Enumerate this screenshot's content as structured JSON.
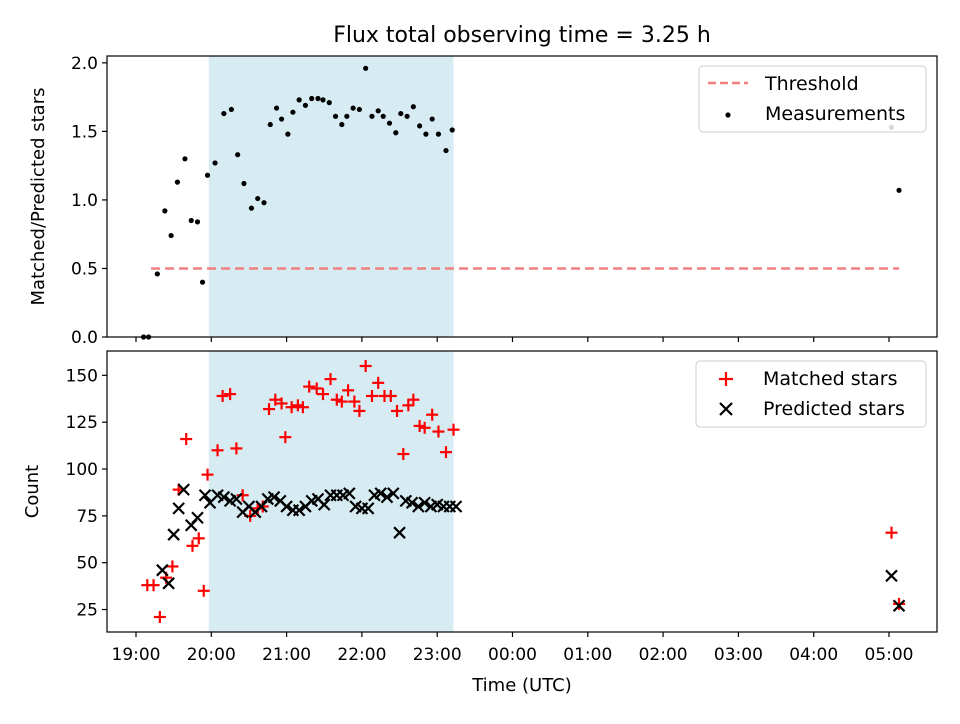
{
  "chart_data": [
    {
      "type": "scatter",
      "title": "Flux total observing time = 3.25 h",
      "xlabel": "",
      "ylabel": "Matched/Predicted stars",
      "ylim": [
        0.0,
        2.05
      ],
      "yticks": [
        "0.0",
        "0.5",
        "1.0",
        "1.5",
        "2.0"
      ],
      "shaded_interval": {
        "start": "19:58",
        "end": "23:13",
        "color": "#add8e6"
      },
      "legend": {
        "placement": "top-right",
        "entries": [
          "Threshold",
          "Measurements"
        ]
      },
      "threshold": {
        "name": "Threshold",
        "value": 0.5,
        "x_start": "19:12",
        "x_end": "05:08",
        "color": "#f08080",
        "style": "dashed"
      },
      "series": [
        {
          "name": "Measurements",
          "color": "#000000",
          "points": [
            {
              "x": "19:06",
              "y": 0.0
            },
            {
              "x": "19:10",
              "y": 0.0
            },
            {
              "x": "19:17",
              "y": 0.46
            },
            {
              "x": "19:23",
              "y": 0.92
            },
            {
              "x": "19:28",
              "y": 0.74
            },
            {
              "x": "19:33",
              "y": 1.13
            },
            {
              "x": "19:39",
              "y": 1.3
            },
            {
              "x": "19:44",
              "y": 0.85
            },
            {
              "x": "19:49",
              "y": 0.84
            },
            {
              "x": "19:53",
              "y": 0.4
            },
            {
              "x": "19:57",
              "y": 1.18
            },
            {
              "x": "20:03",
              "y": 1.27
            },
            {
              "x": "20:10",
              "y": 1.63
            },
            {
              "x": "20:16",
              "y": 1.66
            },
            {
              "x": "20:21",
              "y": 1.33
            },
            {
              "x": "20:26",
              "y": 1.12
            },
            {
              "x": "20:32",
              "y": 0.94
            },
            {
              "x": "20:37",
              "y": 1.01
            },
            {
              "x": "20:42",
              "y": 0.98
            },
            {
              "x": "20:47",
              "y": 1.55
            },
            {
              "x": "20:52",
              "y": 1.67
            },
            {
              "x": "20:56",
              "y": 1.59
            },
            {
              "x": "21:01",
              "y": 1.48
            },
            {
              "x": "21:05",
              "y": 1.64
            },
            {
              "x": "21:10",
              "y": 1.73
            },
            {
              "x": "21:15",
              "y": 1.69
            },
            {
              "x": "21:20",
              "y": 1.74
            },
            {
              "x": "21:25",
              "y": 1.74
            },
            {
              "x": "21:29",
              "y": 1.73
            },
            {
              "x": "21:34",
              "y": 1.71
            },
            {
              "x": "21:39",
              "y": 1.61
            },
            {
              "x": "21:44",
              "y": 1.55
            },
            {
              "x": "21:48",
              "y": 1.61
            },
            {
              "x": "21:53",
              "y": 1.67
            },
            {
              "x": "21:58",
              "y": 1.66
            },
            {
              "x": "22:03",
              "y": 1.96
            },
            {
              "x": "22:08",
              "y": 1.61
            },
            {
              "x": "22:13",
              "y": 1.65
            },
            {
              "x": "22:17",
              "y": 1.61
            },
            {
              "x": "22:22",
              "y": 1.56
            },
            {
              "x": "22:27",
              "y": 1.49
            },
            {
              "x": "22:31",
              "y": 1.63
            },
            {
              "x": "22:36",
              "y": 1.61
            },
            {
              "x": "22:41",
              "y": 1.68
            },
            {
              "x": "22:46",
              "y": 1.54
            },
            {
              "x": "22:51",
              "y": 1.48
            },
            {
              "x": "22:56",
              "y": 1.59
            },
            {
              "x": "23:01",
              "y": 1.48
            },
            {
              "x": "23:07",
              "y": 1.36
            },
            {
              "x": "23:12",
              "y": 1.51
            },
            {
              "x": "05:02",
              "y": 1.53
            },
            {
              "x": "05:08",
              "y": 1.07
            }
          ]
        }
      ]
    },
    {
      "type": "scatter",
      "title": "",
      "xlabel": "Time (UTC)",
      "ylabel": "Count",
      "ylim": [
        13,
        163
      ],
      "yticks": [
        "25",
        "50",
        "75",
        "100",
        "125",
        "150"
      ],
      "xticks": [
        "19:00",
        "20:00",
        "21:00",
        "22:00",
        "23:00",
        "00:00",
        "01:00",
        "02:00",
        "03:00",
        "04:00",
        "05:00"
      ],
      "shaded_interval": {
        "start": "19:58",
        "end": "23:13",
        "color": "#add8e6"
      },
      "legend": {
        "placement": "top-right",
        "entries": [
          "Matched stars",
          "Predicted stars"
        ]
      },
      "series": [
        {
          "name": "Matched stars",
          "marker": "+",
          "color": "#ff0000",
          "points": [
            {
              "x": "19:09",
              "y": 38
            },
            {
              "x": "19:14",
              "y": 38
            },
            {
              "x": "19:19",
              "y": 21
            },
            {
              "x": "19:24",
              "y": 42
            },
            {
              "x": "19:29",
              "y": 48
            },
            {
              "x": "19:34",
              "y": 89
            },
            {
              "x": "19:40",
              "y": 116
            },
            {
              "x": "19:45",
              "y": 59
            },
            {
              "x": "19:50",
              "y": 63
            },
            {
              "x": "19:54",
              "y": 35
            },
            {
              "x": "19:57",
              "y": 97
            },
            {
              "x": "20:05",
              "y": 110
            },
            {
              "x": "20:09",
              "y": 139
            },
            {
              "x": "20:15",
              "y": 140
            },
            {
              "x": "20:20",
              "y": 111
            },
            {
              "x": "20:25",
              "y": 86
            },
            {
              "x": "20:31",
              "y": 75
            },
            {
              "x": "20:37",
              "y": 79
            },
            {
              "x": "20:41",
              "y": 80
            },
            {
              "x": "20:46",
              "y": 132
            },
            {
              "x": "20:51",
              "y": 137
            },
            {
              "x": "20:56",
              "y": 135
            },
            {
              "x": "20:59",
              "y": 117
            },
            {
              "x": "21:04",
              "y": 133
            },
            {
              "x": "21:09",
              "y": 134
            },
            {
              "x": "21:13",
              "y": 133
            },
            {
              "x": "21:18",
              "y": 144
            },
            {
              "x": "21:24",
              "y": 143
            },
            {
              "x": "21:29",
              "y": 140
            },
            {
              "x": "21:35",
              "y": 148
            },
            {
              "x": "21:40",
              "y": 137
            },
            {
              "x": "21:44",
              "y": 136
            },
            {
              "x": "21:49",
              "y": 142
            },
            {
              "x": "21:54",
              "y": 136
            },
            {
              "x": "21:58",
              "y": 131
            },
            {
              "x": "22:03",
              "y": 155
            },
            {
              "x": "22:08",
              "y": 139
            },
            {
              "x": "22:13",
              "y": 146
            },
            {
              "x": "22:18",
              "y": 139
            },
            {
              "x": "22:23",
              "y": 139
            },
            {
              "x": "22:28",
              "y": 131
            },
            {
              "x": "22:33",
              "y": 108
            },
            {
              "x": "22:37",
              "y": 134
            },
            {
              "x": "22:41",
              "y": 137
            },
            {
              "x": "22:46",
              "y": 123
            },
            {
              "x": "22:50",
              "y": 122
            },
            {
              "x": "22:56",
              "y": 129
            },
            {
              "x": "23:01",
              "y": 120
            },
            {
              "x": "23:07",
              "y": 109
            },
            {
              "x": "23:13",
              "y": 121
            },
            {
              "x": "05:02",
              "y": 66
            },
            {
              "x": "05:08",
              "y": 28
            }
          ]
        },
        {
          "name": "Predicted stars",
          "marker": "x",
          "color": "#000000",
          "points": [
            {
              "x": "19:21",
              "y": 46
            },
            {
              "x": "19:26",
              "y": 39
            },
            {
              "x": "19:30",
              "y": 65
            },
            {
              "x": "19:34",
              "y": 79
            },
            {
              "x": "19:38",
              "y": 89
            },
            {
              "x": "19:44",
              "y": 70
            },
            {
              "x": "19:49",
              "y": 74
            },
            {
              "x": "19:55",
              "y": 86
            },
            {
              "x": "19:59",
              "y": 82
            },
            {
              "x": "20:05",
              "y": 86
            },
            {
              "x": "20:10",
              "y": 85
            },
            {
              "x": "20:15",
              "y": 83
            },
            {
              "x": "20:20",
              "y": 84
            },
            {
              "x": "20:25",
              "y": 77
            },
            {
              "x": "20:30",
              "y": 80
            },
            {
              "x": "20:35",
              "y": 77
            },
            {
              "x": "20:40",
              "y": 80
            },
            {
              "x": "20:45",
              "y": 84
            },
            {
              "x": "20:50",
              "y": 85
            },
            {
              "x": "20:55",
              "y": 83
            },
            {
              "x": "21:00",
              "y": 80
            },
            {
              "x": "21:05",
              "y": 78
            },
            {
              "x": "21:10",
              "y": 78
            },
            {
              "x": "21:15",
              "y": 80
            },
            {
              "x": "21:20",
              "y": 83
            },
            {
              "x": "21:25",
              "y": 84
            },
            {
              "x": "21:30",
              "y": 81
            },
            {
              "x": "21:35",
              "y": 86
            },
            {
              "x": "21:40",
              "y": 86
            },
            {
              "x": "21:45",
              "y": 86
            },
            {
              "x": "21:50",
              "y": 87
            },
            {
              "x": "21:55",
              "y": 80
            },
            {
              "x": "22:00",
              "y": 79
            },
            {
              "x": "22:05",
              "y": 79
            },
            {
              "x": "22:10",
              "y": 86
            },
            {
              "x": "22:15",
              "y": 87
            },
            {
              "x": "22:20",
              "y": 85
            },
            {
              "x": "22:25",
              "y": 87
            },
            {
              "x": "22:30",
              "y": 66
            },
            {
              "x": "22:35",
              "y": 83
            },
            {
              "x": "22:40",
              "y": 82
            },
            {
              "x": "22:45",
              "y": 80
            },
            {
              "x": "22:50",
              "y": 82
            },
            {
              "x": "22:55",
              "y": 80
            },
            {
              "x": "23:00",
              "y": 81
            },
            {
              "x": "23:05",
              "y": 80
            },
            {
              "x": "23:10",
              "y": 80
            },
            {
              "x": "23:15",
              "y": 80
            },
            {
              "x": "05:02",
              "y": 43
            },
            {
              "x": "05:08",
              "y": 27
            }
          ]
        }
      ]
    }
  ]
}
